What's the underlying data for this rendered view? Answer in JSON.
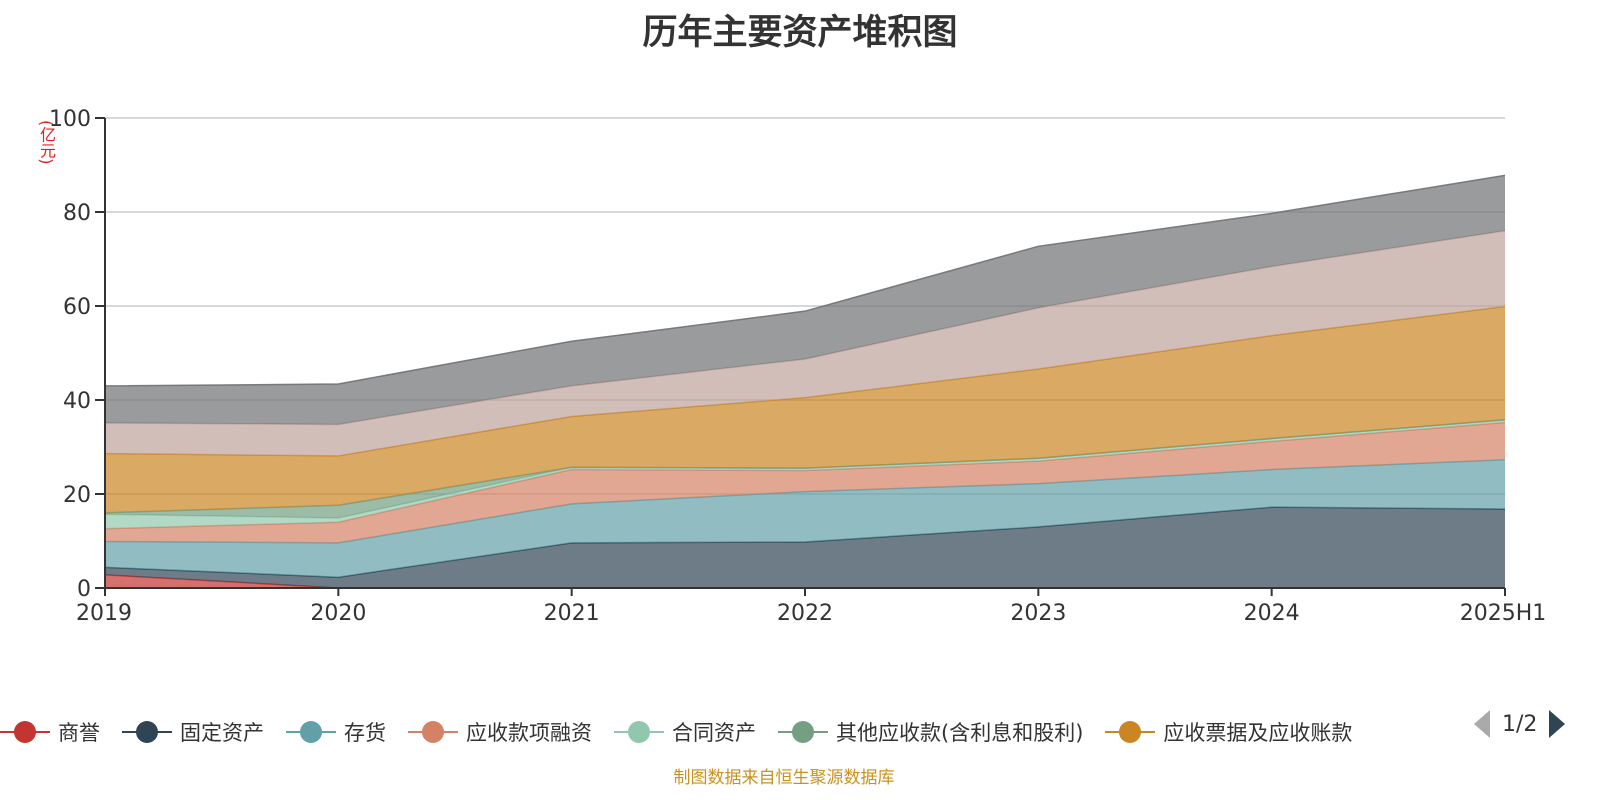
{
  "colors": {
    "axis": "#333333",
    "grid": "#cccccc",
    "title": "#333333",
    "unit": "#e02020",
    "source": "#c9921e"
  },
  "chart_data": {
    "type": "area",
    "stacked": true,
    "title": "历年主要资产堆积图",
    "unit_label": "(亿元)",
    "categories": [
      "2019",
      "2020",
      "2021",
      "2022",
      "2023",
      "2024",
      "2025H1"
    ],
    "ylim": [
      0,
      100
    ],
    "yticks": [
      0,
      20,
      40,
      60,
      80,
      100
    ],
    "grid": true,
    "legend_position": "bottom",
    "series": [
      {
        "name": "商誉",
        "color": "#c23531",
        "values": [
          2.8,
          0,
          0,
          0,
          0,
          0,
          0
        ]
      },
      {
        "name": "固定资产",
        "color": "#2f4554",
        "values": [
          1.6,
          2.3,
          9.6,
          9.8,
          13.0,
          17.2,
          16.8
        ]
      },
      {
        "name": "存货",
        "color": "#61a0a8",
        "values": [
          5.5,
          7.3,
          8.3,
          10.7,
          9.2,
          8.0,
          10.5
        ]
      },
      {
        "name": "应收款项融资",
        "color": "#d48265",
        "values": [
          2.7,
          4.4,
          7.3,
          4.5,
          4.8,
          6.0,
          7.9
        ]
      },
      {
        "name": "合同资产",
        "color": "#91c7ae",
        "values": [
          3.1,
          0.9,
          0.5,
          0.5,
          0.6,
          0.6,
          0.6
        ]
      },
      {
        "name": "其他应收款(含利息和股利)",
        "color": "#749f83",
        "values": [
          0.3,
          2.7,
          0,
          0,
          0,
          0,
          0
        ]
      },
      {
        "name": "应收票据及应收账款",
        "color": "#ca8622",
        "values": [
          12.6,
          10.5,
          10.8,
          15.0,
          19.0,
          21.9,
          24.1
        ]
      },
      {
        "name": "",
        "color": "#bda29a",
        "values": [
          6.5,
          6.7,
          6.5,
          8.2,
          13.0,
          14.7,
          16.1
        ]
      },
      {
        "name": "",
        "color": "#6e7074",
        "values": [
          7.9,
          8.6,
          9.5,
          10.2,
          13.1,
          11.3,
          11.8
        ]
      }
    ]
  },
  "legend": {
    "pager_text": "1/2"
  },
  "source_note": "制图数据来自恒生聚源数据库"
}
